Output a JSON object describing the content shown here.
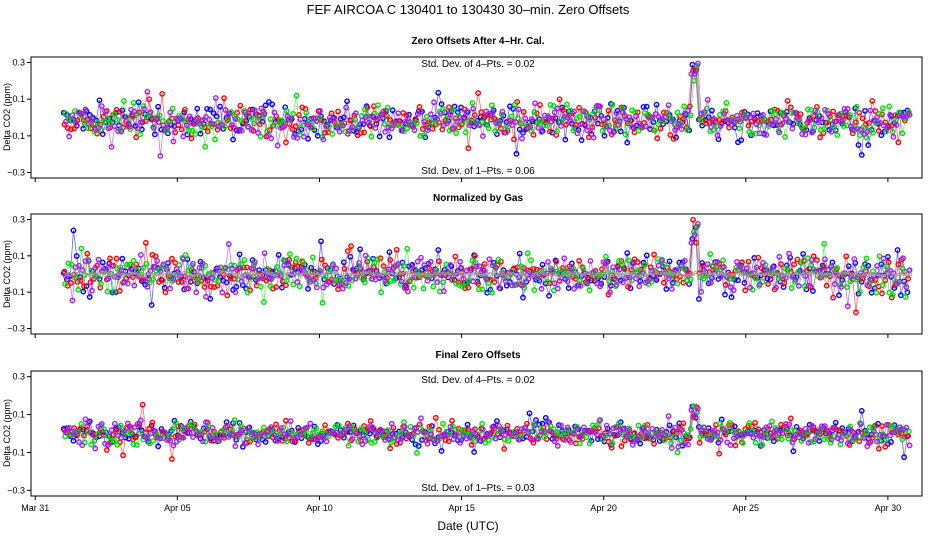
{
  "title": "FEF   AIRCOA C   130401 to 130430   30–min. Zero Offsets",
  "x_axis": {
    "label": "Date (UTC)",
    "ticks": [
      {
        "day": 0,
        "label": "Mar 31"
      },
      {
        "day": 5,
        "label": "Apr 05"
      },
      {
        "day": 10,
        "label": "Apr 10"
      },
      {
        "day": 15,
        "label": "Apr 15"
      },
      {
        "day": 20,
        "label": "Apr 20"
      },
      {
        "day": 25,
        "label": "Apr 25"
      },
      {
        "day": 30,
        "label": "Apr 30"
      }
    ],
    "range_days": [
      -0.15,
      31.2
    ]
  },
  "colors": {
    "gas1": "#0000ff",
    "gas2": "#ff0000",
    "gas3": "#00e000",
    "gas4": "#a020f0",
    "normalized": "#9a9a9a"
  },
  "chart_data": [
    {
      "type": "scatter",
      "title": "Zero Offsets After 4–Hr. Cal.",
      "ylabel": "Delta CO2 (ppm)",
      "ylim": [
        -0.33,
        0.33
      ],
      "yticks": [
        {
          "value": 0.3,
          "label": "0.3"
        },
        {
          "value": 0.1,
          "label": "0.1"
        },
        {
          "value": -0.1,
          "label": "−0.1"
        },
        {
          "value": -0.3,
          "label": "−0.3"
        }
      ],
      "annotations": {
        "top": "Std. Dev. of 4–Pts. =  0.02",
        "bottom": "Std. Dev. of 1–Pts. =  0.06"
      },
      "series": [
        "gas1",
        "gas2",
        "gas3",
        "gas4"
      ],
      "x_range_days": [
        1,
        30.8
      ],
      "center": -0.02,
      "spread": 0.045,
      "spike": {
        "day": 23.2,
        "value": 0.3
      }
    },
    {
      "type": "scatter",
      "title": "Normalized by Gas",
      "ylabel": "Delta CO2 (ppm)",
      "ylim": [
        -0.33,
        0.33
      ],
      "yticks": [
        {
          "value": 0.3,
          "label": "0.3"
        },
        {
          "value": 0.1,
          "label": "0.1"
        },
        {
          "value": -0.1,
          "label": "−0.1"
        },
        {
          "value": -0.3,
          "label": "−0.3"
        }
      ],
      "annotations": {
        "top": "",
        "bottom": ""
      },
      "series": [
        "gas1",
        "gas2",
        "gas3",
        "gas4",
        "normalized"
      ],
      "x_range_days": [
        1,
        30.8
      ],
      "center": 0.0,
      "spread": 0.05,
      "spike": {
        "day": 23.2,
        "value": 0.3
      }
    },
    {
      "type": "scatter",
      "title": "Final Zero Offsets",
      "ylabel": "Delta CO2 (ppm)",
      "ylim": [
        -0.33,
        0.33
      ],
      "yticks": [
        {
          "value": 0.3,
          "label": "0.3"
        },
        {
          "value": 0.1,
          "label": "0.1"
        },
        {
          "value": -0.1,
          "label": "−0.1"
        },
        {
          "value": -0.3,
          "label": "−0.3"
        }
      ],
      "annotations": {
        "top": "Std. Dev. of 4–Pts. =  0.02",
        "bottom": "Std. Dev. of 1–Pts. =  0.03"
      },
      "series": [
        "gas1",
        "gas2",
        "gas3",
        "gas4"
      ],
      "x_range_days": [
        1,
        30.8
      ],
      "center": 0.0,
      "spread": 0.03,
      "spike": {
        "day": 23.2,
        "value": 0.15
      }
    }
  ]
}
